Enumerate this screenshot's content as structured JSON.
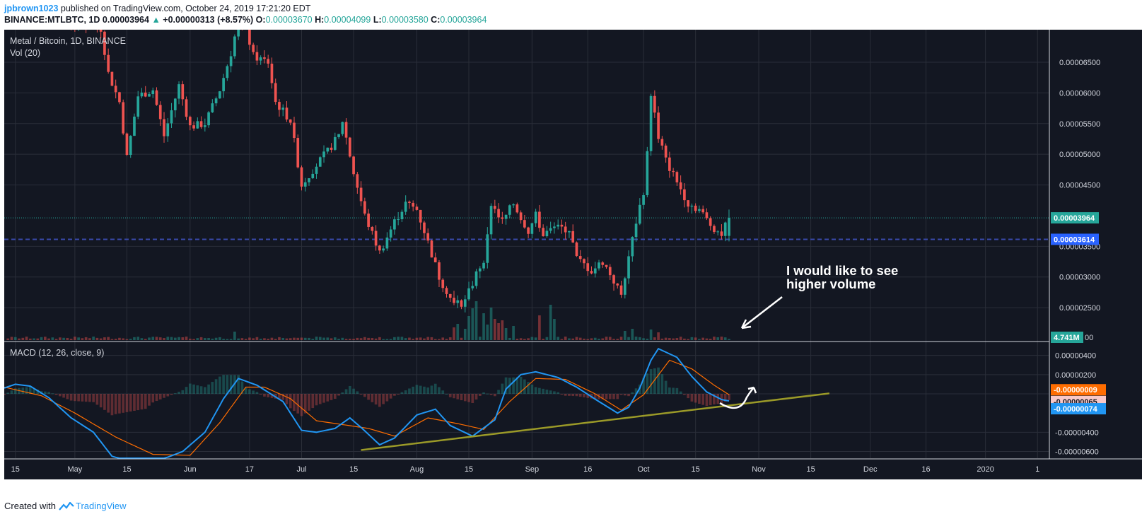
{
  "header": {
    "author": "jpbrown1023",
    "published": "published on TradingView.com, October 24, 2019 17:21:20 EDT",
    "symbol": "BINANCE:MTLBTC, 1D",
    "last": "0.00003964",
    "change_arrow": "▲",
    "change": "+0.00000313 (+8.57%)",
    "o_label": "O:",
    "o_value": "0.00003670",
    "h_label": "H:",
    "h_value": "0.00004099",
    "l_label": "L:",
    "l_value": "0.00003580",
    "c_label": "C:",
    "c_value": "0.00003964"
  },
  "footer": {
    "created_with": "Created with",
    "brand": "TradingView",
    "brand_icon": "tradingview-logo-icon"
  },
  "colors": {
    "background": "#131722",
    "grid": "#2a2e39",
    "up": "#26a69a",
    "down": "#ef5350",
    "macd_line": "#2196f3",
    "signal_line": "#ff6d00",
    "trendline": "#9b9a28",
    "hline": "#3949ab",
    "annotation": "#ffffff"
  },
  "chart_data": {
    "type": "candlestick",
    "title": "Metal / Bitcoin, 1D, BINANCE",
    "volume_label": "Vol (20)",
    "macd_label": "MACD (12, 26, close, 9)",
    "price_ticks": [
      "0.00006500",
      "0.00006000",
      "0.00005500",
      "0.00005000",
      "0.00004500",
      "0.00003500",
      "0.00003000",
      "0.00002500"
    ],
    "price_tick_values": [
      6.5e-05,
      6e-05,
      5.5e-05,
      5e-05,
      4.5e-05,
      3.5e-05,
      3e-05,
      2.5e-05
    ],
    "price_ylim": [
      1.96e-05,
      7.03e-05
    ],
    "last_price_label": "0.00003964",
    "last_price": 3.964e-05,
    "hline_label": "0.00003614",
    "hline_price": 3.614e-05,
    "volume_tick_label": "4.741M",
    "volume_tick_tail": "00",
    "macd_ticks": [
      "0.00000400",
      "0.00000200",
      "-0.00000400",
      "-0.00000600"
    ],
    "macd_tick_values": [
      4e-06,
      2e-06,
      -4e-06,
      -6e-06
    ],
    "macd_ylim": [
      -6.7e-06,
      5.3e-06
    ],
    "macd_value_labels": [
      "-0.00000009",
      "-0.00000065",
      "-0.00000074"
    ],
    "macd_value_numbers": [
      -9e-08,
      -6.5e-07,
      -7.4e-07
    ],
    "x_ticks": [
      "15",
      "May",
      "15",
      "Jun",
      "17",
      "Jul",
      "15",
      "Aug",
      "15",
      "Sep",
      "16",
      "Oct",
      "15",
      "Nov",
      "15",
      "Dec",
      "16",
      "2020",
      "1"
    ],
    "x_tick_dates": [
      "2019-04-15",
      "2019-05-01",
      "2019-05-15",
      "2019-06-01",
      "2019-06-17",
      "2019-07-01",
      "2019-07-15",
      "2019-08-01",
      "2019-08-15",
      "2019-09-01",
      "2019-09-16",
      "2019-10-01",
      "2019-10-15",
      "2019-11-01",
      "2019-11-15",
      "2019-12-01",
      "2019-12-16",
      "2020-01-01",
      "2020-01-15"
    ],
    "x_range": [
      "2019-04-12",
      "2020-01-18"
    ],
    "close_anchors": [
      [
        "2019-04-12",
        7.35e-05
      ],
      [
        "2019-05-08",
        7.05e-05
      ],
      [
        "2019-05-10",
        6.32e-05
      ],
      [
        "2019-05-13",
        5.85e-05
      ],
      [
        "2019-05-15",
        4.95e-05
      ],
      [
        "2019-05-18",
        5.95e-05
      ],
      [
        "2019-05-22",
        6.05e-05
      ],
      [
        "2019-05-25",
        5.3e-05
      ],
      [
        "2019-05-29",
        6.12e-05
      ],
      [
        "2019-06-01",
        5.45e-05
      ],
      [
        "2019-06-05",
        5.5e-05
      ],
      [
        "2019-06-09",
        6.05e-05
      ],
      [
        "2019-06-12",
        6.65e-05
      ],
      [
        "2019-06-14",
        7.18e-05
      ],
      [
        "2019-06-16",
        7.05e-05
      ],
      [
        "2019-06-18",
        6.6e-05
      ],
      [
        "2019-06-22",
        6.5e-05
      ],
      [
        "2019-06-24",
        5.85e-05
      ],
      [
        "2019-06-28",
        5.55e-05
      ],
      [
        "2019-07-01",
        4.5e-05
      ],
      [
        "2019-07-04",
        4.75e-05
      ],
      [
        "2019-07-08",
        5.05e-05
      ],
      [
        "2019-07-11",
        5.3e-05
      ],
      [
        "2019-07-12",
        5.55e-05
      ],
      [
        "2019-07-15",
        4.7e-05
      ],
      [
        "2019-07-18",
        4e-05
      ],
      [
        "2019-07-22",
        3.4e-05
      ],
      [
        "2019-07-26",
        3.9e-05
      ],
      [
        "2019-07-29",
        4.2e-05
      ],
      [
        "2019-08-01",
        4.1e-05
      ],
      [
        "2019-08-03",
        3.75e-05
      ],
      [
        "2019-08-07",
        3e-05
      ],
      [
        "2019-08-11",
        2.55e-05
      ],
      [
        "2019-08-14",
        2.6e-05
      ],
      [
        "2019-08-17",
        3.05e-05
      ],
      [
        "2019-08-19",
        3.3e-05
      ],
      [
        "2019-08-20",
        3.65e-05
      ],
      [
        "2019-08-21",
        4.2e-05
      ],
      [
        "2019-08-24",
        3.9e-05
      ],
      [
        "2019-08-27",
        4.2e-05
      ],
      [
        "2019-08-31",
        3.75e-05
      ],
      [
        "2019-09-02",
        4e-05
      ],
      [
        "2019-09-04",
        3.7e-05
      ],
      [
        "2019-09-07",
        3.8e-05
      ],
      [
        "2019-09-11",
        3.78e-05
      ],
      [
        "2019-09-13",
        3.3e-05
      ],
      [
        "2019-09-17",
        3.1e-05
      ],
      [
        "2019-09-20",
        3.25e-05
      ],
      [
        "2019-09-22",
        3.05e-05
      ],
      [
        "2019-09-25",
        2.7e-05
      ],
      [
        "2019-09-27",
        3.35e-05
      ],
      [
        "2019-09-29",
        3.9e-05
      ],
      [
        "2019-10-01",
        4.4e-05
      ],
      [
        "2019-10-02",
        5e-05
      ],
      [
        "2019-10-03",
        6e-05
      ],
      [
        "2019-10-05",
        5.3e-05
      ],
      [
        "2019-10-07",
        4.9e-05
      ],
      [
        "2019-10-10",
        4.55e-05
      ],
      [
        "2019-10-13",
        4.2e-05
      ],
      [
        "2019-10-16",
        4.1e-05
      ],
      [
        "2019-10-19",
        3.85e-05
      ],
      [
        "2019-10-22",
        3.7e-05
      ],
      [
        "2019-10-24",
        3.96e-05
      ]
    ],
    "last_candle": {
      "open": 3.67e-05,
      "high": 4.099e-05,
      "low": 3.58e-05,
      "close": 3.964e-05
    },
    "volume_spikes": [
      [
        "2019-04-12",
        0.9
      ],
      [
        "2019-06-13",
        1.2
      ],
      [
        "2019-08-11",
        1.8
      ],
      [
        "2019-08-12",
        2.3
      ],
      [
        "2019-08-14",
        1.6
      ],
      [
        "2019-08-15",
        3.4
      ],
      [
        "2019-08-16",
        4.5
      ],
      [
        "2019-08-17",
        5.5
      ],
      [
        "2019-08-19",
        3.8
      ],
      [
        "2019-08-20",
        2.2
      ],
      [
        "2019-08-21",
        4.6
      ],
      [
        "2019-08-22",
        3.0
      ],
      [
        "2019-08-23",
        2.4
      ],
      [
        "2019-08-24",
        2.8
      ],
      [
        "2019-08-25",
        1.7
      ],
      [
        "2019-08-27",
        2.0
      ],
      [
        "2019-09-03",
        3.5
      ],
      [
        "2019-09-06",
        5.0
      ],
      [
        "2019-09-07",
        3.0
      ],
      [
        "2019-09-26",
        1.3
      ],
      [
        "2019-09-28",
        1.6
      ],
      [
        "2019-10-03",
        1.5
      ],
      [
        "2019-10-05",
        1.1
      ]
    ],
    "macd_anchors": [
      [
        "2019-04-12",
        0.6
      ],
      [
        "2019-04-15",
        1.0
      ],
      [
        "2019-04-19",
        0.8
      ],
      [
        "2019-04-24",
        -0.4
      ],
      [
        "2019-04-30",
        -2.5
      ],
      [
        "2019-05-06",
        -4.0
      ],
      [
        "2019-05-11",
        -6.5
      ],
      [
        "2019-05-20",
        -7.5
      ],
      [
        "2019-05-30",
        -6.0
      ],
      [
        "2019-06-05",
        -4.0
      ],
      [
        "2019-06-10",
        -0.5
      ],
      [
        "2019-06-14",
        1.6
      ],
      [
        "2019-06-19",
        0.9
      ],
      [
        "2019-06-26",
        -0.8
      ],
      [
        "2019-07-01",
        -3.8
      ],
      [
        "2019-07-05",
        -4.0
      ],
      [
        "2019-07-10",
        -3.6
      ],
      [
        "2019-07-14",
        -2.5
      ],
      [
        "2019-07-17",
        -3.5
      ],
      [
        "2019-07-22",
        -5.3
      ],
      [
        "2019-07-26",
        -4.6
      ],
      [
        "2019-08-01",
        -2.2
      ],
      [
        "2019-08-06",
        -1.6
      ],
      [
        "2019-08-10",
        -3.3
      ],
      [
        "2019-08-16",
        -4.4
      ],
      [
        "2019-08-22",
        -2.7
      ],
      [
        "2019-08-25",
        0.5
      ],
      [
        "2019-08-29",
        2.0
      ],
      [
        "2019-09-02",
        2.3
      ],
      [
        "2019-09-08",
        1.7
      ],
      [
        "2019-09-13",
        0.7
      ],
      [
        "2019-09-19",
        -0.8
      ],
      [
        "2019-09-24",
        -2.0
      ],
      [
        "2019-09-27",
        -1.4
      ],
      [
        "2019-09-30",
        0.6
      ],
      [
        "2019-10-03",
        3.5
      ],
      [
        "2019-10-05",
        4.7
      ],
      [
        "2019-10-10",
        3.8
      ],
      [
        "2019-10-14",
        1.8
      ],
      [
        "2019-10-18",
        0.2
      ],
      [
        "2019-10-22",
        -0.6
      ],
      [
        "2019-10-24",
        -0.74
      ]
    ],
    "macd_scale": 1e-06,
    "signal_anchors": [
      [
        "2019-04-12",
        0.7
      ],
      [
        "2019-04-22",
        -0.2
      ],
      [
        "2019-05-01",
        -2.0
      ],
      [
        "2019-05-12",
        -4.5
      ],
      [
        "2019-05-22",
        -6.3
      ],
      [
        "2019-06-01",
        -6.4
      ],
      [
        "2019-06-09",
        -3.0
      ],
      [
        "2019-06-16",
        0.7
      ],
      [
        "2019-06-21",
        0.7
      ],
      [
        "2019-06-28",
        -0.5
      ],
      [
        "2019-07-05",
        -2.8
      ],
      [
        "2019-07-12",
        -3.2
      ],
      [
        "2019-07-19",
        -3.6
      ],
      [
        "2019-07-26",
        -4.4
      ],
      [
        "2019-08-04",
        -2.5
      ],
      [
        "2019-08-12",
        -3.1
      ],
      [
        "2019-08-19",
        -3.7
      ],
      [
        "2019-08-26",
        -0.8
      ],
      [
        "2019-09-02",
        1.6
      ],
      [
        "2019-09-10",
        1.5
      ],
      [
        "2019-09-18",
        0.0
      ],
      [
        "2019-09-25",
        -1.7
      ],
      [
        "2019-10-01",
        -0.1
      ],
      [
        "2019-10-08",
        3.5
      ],
      [
        "2019-10-14",
        2.6
      ],
      [
        "2019-10-20",
        0.9
      ],
      [
        "2019-10-24",
        -0.09
      ]
    ],
    "trendline": [
      [
        "2019-07-17",
        -5.85
      ],
      [
        "2019-11-20",
        0.05
      ]
    ],
    "annotation": {
      "line1": "I would like to see",
      "line2": "higher volume"
    }
  }
}
